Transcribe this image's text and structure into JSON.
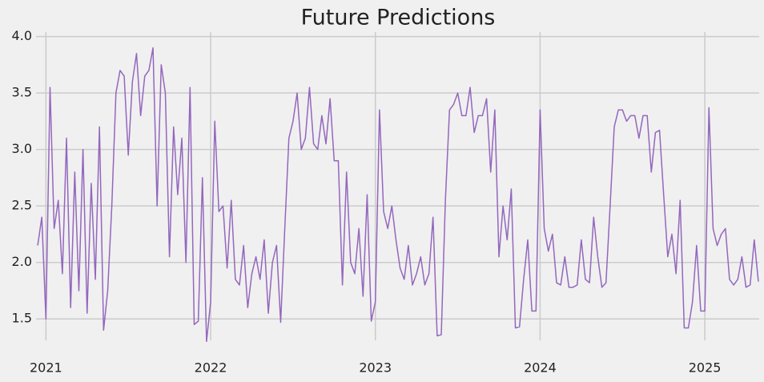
{
  "chart_data": {
    "type": "line",
    "title": "Future Predictions",
    "x": [
      2020.95,
      2020.975,
      2021,
      2021.025,
      2021.05,
      2021.075,
      2021.1,
      2021.125,
      2021.15,
      2021.175,
      2021.2,
      2021.225,
      2021.25,
      2021.275,
      2021.3,
      2021.325,
      2021.35,
      2021.375,
      2021.4,
      2021.425,
      2021.45,
      2021.475,
      2021.5,
      2021.525,
      2021.55,
      2021.575,
      2021.6,
      2021.625,
      2021.65,
      2021.675,
      2021.7,
      2021.725,
      2021.75,
      2021.775,
      2021.8,
      2021.825,
      2021.85,
      2021.875,
      2021.9,
      2021.925,
      2021.95,
      2021.975,
      2022,
      2022.025,
      2022.05,
      2022.075,
      2022.1,
      2022.125,
      2022.15,
      2022.175,
      2022.2,
      2022.225,
      2022.25,
      2022.275,
      2022.3,
      2022.325,
      2022.35,
      2022.375,
      2022.4,
      2022.425,
      2022.45,
      2022.475,
      2022.5,
      2022.525,
      2022.55,
      2022.575,
      2022.6,
      2022.625,
      2022.65,
      2022.675,
      2022.7,
      2022.725,
      2022.75,
      2022.775,
      2022.8,
      2022.825,
      2022.85,
      2022.875,
      2022.9,
      2022.925,
      2022.95,
      2022.975,
      2023,
      2023.025,
      2023.05,
      2023.075,
      2023.1,
      2023.125,
      2023.15,
      2023.175,
      2023.2,
      2023.225,
      2023.25,
      2023.275,
      2023.3,
      2023.325,
      2023.35,
      2023.375,
      2023.4,
      2023.425,
      2023.45,
      2023.475,
      2023.5,
      2023.525,
      2023.55,
      2023.575,
      2023.6,
      2023.625,
      2023.65,
      2023.675,
      2023.7,
      2023.725,
      2023.75,
      2023.775,
      2023.8,
      2023.825,
      2023.85,
      2023.875,
      2023.9,
      2023.925,
      2023.95,
      2023.975,
      2024,
      2024.025,
      2024.05,
      2024.075,
      2024.1,
      2024.125,
      2024.15,
      2024.175,
      2024.2,
      2024.225,
      2024.25,
      2024.275,
      2024.3,
      2024.325,
      2024.35,
      2024.375,
      2024.4,
      2024.425,
      2024.45,
      2024.475,
      2024.5,
      2024.525,
      2024.55,
      2024.575,
      2024.6,
      2024.625,
      2024.65,
      2024.675,
      2024.7,
      2024.725,
      2024.75,
      2024.775,
      2024.8,
      2024.825,
      2024.85,
      2024.875,
      2024.9,
      2024.925,
      2024.95,
      2024.975,
      2025,
      2025.025,
      2025.05,
      2025.075,
      2025.1,
      2025.125,
      2025.15,
      2025.175,
      2025.2,
      2025.225,
      2025.25,
      2025.275,
      2025.3,
      2025.325
    ],
    "values": [
      2.15,
      2.4,
      1.5,
      3.55,
      2.3,
      2.55,
      1.9,
      3.1,
      1.6,
      2.8,
      1.75,
      3.0,
      1.55,
      2.7,
      1.85,
      3.2,
      1.4,
      1.75,
      2.5,
      3.5,
      3.7,
      3.65,
      2.95,
      3.6,
      3.85,
      3.3,
      3.65,
      3.7,
      3.9,
      2.5,
      3.75,
      3.5,
      2.05,
      3.2,
      2.6,
      3.1,
      2.0,
      3.55,
      1.45,
      1.48,
      2.75,
      1.3,
      1.65,
      3.25,
      2.45,
      2.5,
      1.95,
      2.55,
      1.85,
      1.8,
      2.15,
      1.6,
      1.9,
      2.05,
      1.85,
      2.2,
      1.55,
      2.0,
      2.15,
      1.47,
      2.3,
      3.1,
      3.25,
      3.5,
      3.0,
      3.1,
      3.55,
      3.05,
      3.0,
      3.3,
      3.05,
      3.45,
      2.9,
      2.9,
      1.8,
      2.8,
      2.0,
      1.9,
      2.3,
      1.7,
      2.6,
      1.48,
      1.65,
      3.35,
      2.45,
      2.3,
      2.5,
      2.2,
      1.95,
      1.85,
      2.15,
      1.8,
      1.9,
      2.05,
      1.8,
      1.9,
      2.4,
      1.35,
      1.36,
      2.55,
      3.35,
      3.4,
      3.5,
      3.3,
      3.3,
      3.55,
      3.15,
      3.3,
      3.3,
      3.45,
      2.8,
      3.35,
      2.05,
      2.5,
      2.2,
      2.65,
      1.42,
      1.43,
      1.85,
      2.2,
      1.57,
      1.57,
      3.35,
      2.3,
      2.1,
      2.25,
      1.82,
      1.8,
      2.05,
      1.78,
      1.78,
      1.8,
      2.2,
      1.85,
      1.82,
      2.4,
      2.05,
      1.78,
      1.82,
      2.5,
      3.2,
      3.35,
      3.35,
      3.25,
      3.3,
      3.3,
      3.1,
      3.3,
      3.3,
      2.8,
      3.15,
      3.17,
      2.6,
      2.05,
      2.25,
      1.9,
      2.55,
      1.42,
      1.42,
      1.65,
      2.15,
      1.57,
      1.57,
      3.37,
      2.3,
      2.15,
      2.25,
      2.3,
      1.85,
      1.8,
      1.85,
      2.05,
      1.78,
      1.8,
      2.2,
      1.83
    ],
    "color": "#9467bd",
    "xlim": [
      2020.94,
      2025.33
    ],
    "xticks": [
      2021,
      2022,
      2023,
      2024,
      2025
    ],
    "ylim": [
      1.31,
      4.04
    ],
    "yticks": [
      1.5,
      {
        "value": 2,
        "label": "2.0"
      },
      2.5,
      {
        "value": 3,
        "label": "3.0"
      },
      3.5,
      {
        "value": 4,
        "label": "4.0"
      }
    ],
    "grid": true
  }
}
